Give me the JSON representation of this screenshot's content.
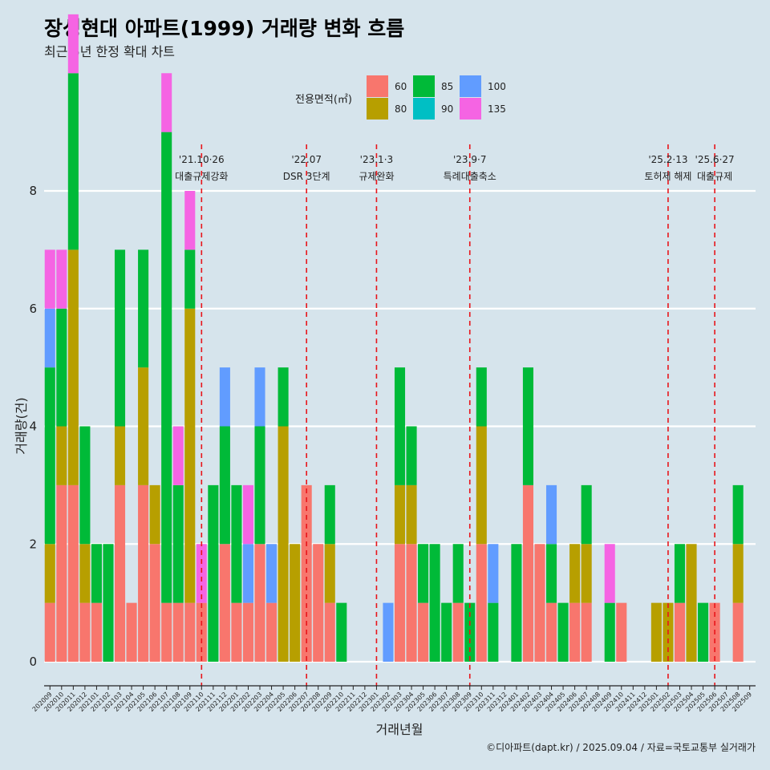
{
  "header": {
    "title": "장성현대 아파트(1999) 거래량 변화 흐름",
    "subtitle": "최근 5년 한정 확대 차트"
  },
  "caption": "©디아파트(dapt.kr) / 2025.09.04 / 자료=국토교통부 실거래가",
  "colors": {
    "background": "#d6e4ec",
    "grid": "#ffffff",
    "event_line": "#e8151b",
    "60": "#f8766d",
    "80": "#b79f00",
    "85": "#00ba38",
    "90": "#00bfc4",
    "100": "#619cff",
    "135": "#f564e3"
  },
  "chart_data": {
    "type": "bar",
    "xlabel": "거래년월",
    "ylabel": "거래량(건)",
    "ylim": [
      0,
      8
    ],
    "yticks": [
      0,
      2,
      4,
      6,
      8
    ],
    "grid": true,
    "legend": {
      "title": "전용면적(㎡)",
      "position": "top",
      "entries": [
        "60",
        "80",
        "85",
        "90",
        "100",
        "135"
      ]
    },
    "categories": [
      "202009",
      "202010",
      "202011",
      "202012",
      "202101",
      "202102",
      "202103",
      "202104",
      "202105",
      "202106",
      "202107",
      "202108",
      "202109",
      "202110",
      "202111",
      "202112",
      "202201",
      "202202",
      "202203",
      "202204",
      "202205",
      "202206",
      "202207",
      "202208",
      "202209",
      "202210",
      "202211",
      "202212",
      "202301",
      "202302",
      "202303",
      "202304",
      "202305",
      "202306",
      "202307",
      "202308",
      "202309",
      "202310",
      "202311",
      "202312",
      "202401",
      "202402",
      "202403",
      "202404",
      "202405",
      "202406",
      "202407",
      "202408",
      "202409",
      "202410",
      "202411",
      "202412",
      "202501",
      "202502",
      "202503",
      "202504",
      "202505",
      "202506",
      "202507",
      "202508",
      "202509"
    ],
    "months": [
      {
        "m": "202009",
        "s": {
          "60": 1,
          "80": 1,
          "85": 3,
          "100": 1,
          "135": 1
        }
      },
      {
        "m": "202010",
        "s": {
          "60": 3,
          "80": 1,
          "85": 2,
          "135": 1
        }
      },
      {
        "m": "202011",
        "s": {
          "60": 3,
          "80": 4,
          "85": 3,
          "135": 1
        }
      },
      {
        "m": "202012",
        "s": {
          "60": 1,
          "80": 1,
          "85": 2
        }
      },
      {
        "m": "202101",
        "s": {
          "60": 1,
          "85": 1
        }
      },
      {
        "m": "202102",
        "s": {
          "85": 2
        }
      },
      {
        "m": "202103",
        "s": {
          "60": 3,
          "80": 1,
          "85": 3
        }
      },
      {
        "m": "202104",
        "s": {
          "60": 1
        }
      },
      {
        "m": "202105",
        "s": {
          "60": 3,
          "80": 2,
          "85": 2
        }
      },
      {
        "m": "202106",
        "s": {
          "60": 2,
          "80": 1
        }
      },
      {
        "m": "202107",
        "s": {
          "60": 1,
          "85": 8,
          "135": 1
        }
      },
      {
        "m": "202108",
        "s": {
          "60": 1,
          "85": 2,
          "135": 1
        }
      },
      {
        "m": "202109",
        "s": {
          "60": 1,
          "80": 5,
          "85": 1,
          "135": 1
        }
      },
      {
        "m": "202110",
        "s": {
          "60": 1,
          "135": 1
        }
      },
      {
        "m": "202111",
        "s": {
          "85": 3
        }
      },
      {
        "m": "202112",
        "s": {
          "60": 2,
          "85": 2,
          "100": 1
        }
      },
      {
        "m": "202201",
        "s": {
          "60": 1,
          "85": 2
        }
      },
      {
        "m": "202202",
        "s": {
          "60": 1,
          "100": 1,
          "135": 1
        }
      },
      {
        "m": "202203",
        "s": {
          "60": 2,
          "85": 2,
          "100": 1
        }
      },
      {
        "m": "202204",
        "s": {
          "60": 1,
          "100": 1
        }
      },
      {
        "m": "202205",
        "s": {
          "80": 4,
          "85": 1
        }
      },
      {
        "m": "202206",
        "s": {
          "80": 2
        }
      },
      {
        "m": "202207",
        "s": {
          "60": 3
        }
      },
      {
        "m": "202208",
        "s": {
          "60": 2
        }
      },
      {
        "m": "202209",
        "s": {
          "60": 1,
          "80": 1,
          "85": 1
        }
      },
      {
        "m": "202210",
        "s": {
          "85": 1
        }
      },
      {
        "m": "202211",
        "s": {}
      },
      {
        "m": "202212",
        "s": {}
      },
      {
        "m": "202301",
        "s": {}
      },
      {
        "m": "202302",
        "s": {
          "100": 1
        }
      },
      {
        "m": "202303",
        "s": {
          "60": 2,
          "80": 1,
          "85": 2
        }
      },
      {
        "m": "202304",
        "s": {
          "60": 2,
          "80": 1,
          "85": 1
        }
      },
      {
        "m": "202305",
        "s": {
          "60": 1,
          "85": 1
        }
      },
      {
        "m": "202306",
        "s": {
          "85": 2
        }
      },
      {
        "m": "202307",
        "s": {
          "85": 1
        }
      },
      {
        "m": "202308",
        "s": {
          "60": 1,
          "85": 1
        }
      },
      {
        "m": "202309",
        "s": {
          "85": 1
        }
      },
      {
        "m": "202310",
        "s": {
          "60": 2,
          "80": 2,
          "85": 1
        }
      },
      {
        "m": "202311",
        "s": {
          "85": 1,
          "100": 1
        }
      },
      {
        "m": "202312",
        "s": {}
      },
      {
        "m": "202401",
        "s": {
          "85": 2
        }
      },
      {
        "m": "202402",
        "s": {
          "60": 3,
          "85": 2
        }
      },
      {
        "m": "202403",
        "s": {
          "60": 2
        }
      },
      {
        "m": "202404",
        "s": {
          "60": 1,
          "85": 1,
          "100": 1
        }
      },
      {
        "m": "202405",
        "s": {
          "85": 1
        }
      },
      {
        "m": "202406",
        "s": {
          "60": 1,
          "80": 1
        }
      },
      {
        "m": "202407",
        "s": {
          "60": 1,
          "80": 1,
          "85": 1
        }
      },
      {
        "m": "202408",
        "s": {}
      },
      {
        "m": "202409",
        "s": {
          "85": 1,
          "135": 1
        }
      },
      {
        "m": "202410",
        "s": {
          "60": 1
        }
      },
      {
        "m": "202411",
        "s": {}
      },
      {
        "m": "202412",
        "s": {}
      },
      {
        "m": "202501",
        "s": {
          "80": 1
        }
      },
      {
        "m": "202502",
        "s": {
          "80": 1
        }
      },
      {
        "m": "202503",
        "s": {
          "60": 1,
          "85": 1
        }
      },
      {
        "m": "202504",
        "s": {
          "80": 2
        }
      },
      {
        "m": "202505",
        "s": {
          "85": 1
        }
      },
      {
        "m": "202506",
        "s": {
          "60": 1
        }
      },
      {
        "m": "202507",
        "s": {}
      },
      {
        "m": "202508",
        "s": {
          "60": 1,
          "80": 1,
          "85": 1
        }
      },
      {
        "m": "202509",
        "s": {}
      }
    ],
    "events": [
      {
        "date": "'21.10·26",
        "label": "대출규제강화",
        "month": "202110"
      },
      {
        "date": "'22.07",
        "label": "DSR 3단계",
        "month": "202207"
      },
      {
        "date": "'23.1·3",
        "label": "규제완화",
        "month": "202301"
      },
      {
        "date": "'23.9·7",
        "label": "특례대출축소",
        "month": "202309"
      },
      {
        "date": "'25.2·13",
        "label": "토허제 해제",
        "month": "202502"
      },
      {
        "date": "'25.6·27",
        "label": "대출규제",
        "month": "202506"
      }
    ]
  }
}
